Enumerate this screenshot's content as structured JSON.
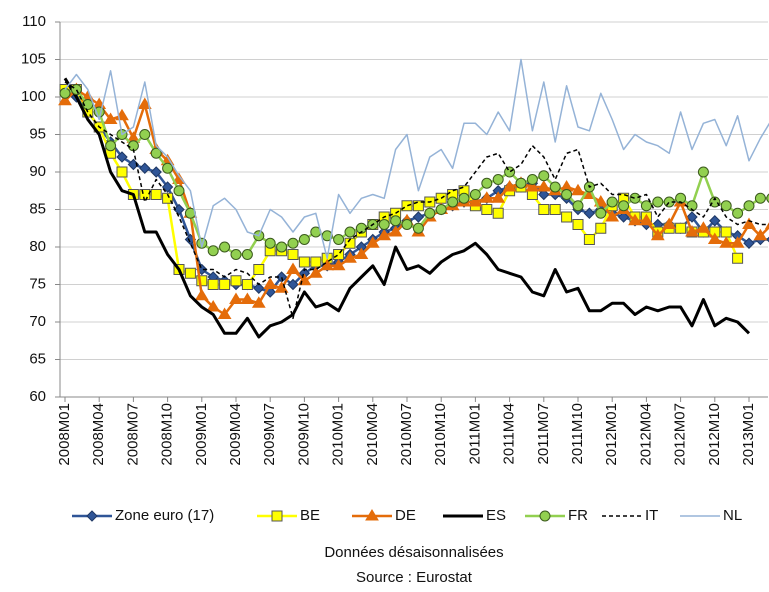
{
  "chart_data": {
    "type": "line",
    "categories": [
      "2008M01",
      null,
      null,
      "2008M04",
      null,
      null,
      "2008M07",
      null,
      null,
      "2008M10",
      null,
      null,
      "2009M01",
      null,
      null,
      "2009M04",
      null,
      null,
      "2009M07",
      null,
      null,
      "2009M10",
      null,
      null,
      "2010M01",
      null,
      null,
      "2010M04",
      null,
      null,
      "2010M07",
      null,
      null,
      "2010M10",
      null,
      null,
      "2011M01",
      null,
      null,
      "2011M04",
      null,
      null,
      "2011M07",
      null,
      null,
      "2011M10",
      null,
      null,
      "2012M01",
      null,
      null,
      "2012M04",
      null,
      null,
      "2012M07",
      null,
      null,
      "2012M10",
      null,
      null,
      "2013M01",
      null,
      null
    ],
    "ylim": [
      60,
      110
    ],
    "yticks": [
      60,
      65,
      70,
      75,
      80,
      85,
      90,
      95,
      100,
      105,
      110
    ],
    "grid": true,
    "series": [
      {
        "name": "Zone euro (17)",
        "color": "#2f5597",
        "marker": "diamond",
        "line_width": 2.5,
        "values": [
          101,
          100,
          98,
          96,
          94,
          92,
          91,
          90.5,
          90,
          88,
          85,
          81,
          77,
          76,
          75.5,
          75,
          75,
          74.5,
          74,
          76,
          75,
          76.5,
          77.5,
          77.5,
          78,
          79,
          80,
          81,
          82,
          82.5,
          83.5,
          84,
          84.5,
          85,
          85.5,
          86,
          86,
          86.5,
          87.5,
          88,
          88,
          88.5,
          87,
          87,
          86.5,
          85,
          84.5,
          85,
          84.5,
          84,
          83.5,
          83,
          83,
          83,
          82.5,
          84,
          82,
          83.5,
          82,
          81.5,
          80.5,
          81,
          81
        ]
      },
      {
        "name": "BE",
        "color": "#ffff00",
        "marker": "square",
        "line_width": 2.5,
        "values": [
          101,
          101,
          98,
          96,
          92.5,
          90,
          87,
          87,
          87,
          86.5,
          77,
          76.5,
          75.5,
          75,
          75,
          75.5,
          75,
          77,
          79.5,
          79.5,
          79,
          78,
          78,
          78.5,
          79,
          80.5,
          82,
          83,
          84,
          84.5,
          85.5,
          85.5,
          86,
          86.5,
          87,
          87.5,
          85.5,
          85,
          84.5,
          87.5,
          88,
          87,
          85,
          85,
          84,
          83,
          81,
          82.5,
          85.5,
          86.5,
          84,
          84,
          82,
          82.5,
          82.5,
          82,
          82,
          82,
          82,
          78.5,
          null,
          null,
          null
        ]
      },
      {
        "name": "DE",
        "color": "#e46c0a",
        "marker": "triangle",
        "line_width": 2.5,
        "values": [
          99.5,
          101,
          100,
          99,
          97,
          97.5,
          94.5,
          99,
          93,
          91.5,
          89,
          84.5,
          73.5,
          72,
          71,
          73,
          73,
          72.5,
          75,
          74.5,
          77,
          75.5,
          76.5,
          77.5,
          77.5,
          78.5,
          79,
          80.5,
          81.5,
          82,
          83.5,
          82,
          84,
          85,
          85.5,
          86,
          86,
          86.5,
          86.5,
          88,
          88.5,
          88,
          88,
          87.5,
          88,
          87.5,
          87,
          86,
          84,
          85,
          83.5,
          83.5,
          81.5,
          83,
          86,
          82,
          82.5,
          81,
          80.5,
          80.5,
          83,
          81.5,
          83
        ]
      },
      {
        "name": "ES",
        "color": "#000000",
        "marker": "none",
        "line_width": 3,
        "values": [
          102.5,
          100,
          97,
          95,
          90,
          87.5,
          87,
          82,
          82,
          79,
          77,
          73.5,
          72,
          71,
          68.5,
          68.5,
          70.5,
          68,
          69.5,
          70,
          71,
          74,
          72,
          72.5,
          71.5,
          74.5,
          76,
          77.5,
          75,
          80,
          77,
          77.5,
          76.5,
          78,
          79,
          79.5,
          80.5,
          79,
          77,
          76.5,
          76,
          74,
          73.5,
          77,
          74,
          74.5,
          71.5,
          71.5,
          72.5,
          72.5,
          71,
          72,
          71.5,
          72,
          72,
          69.5,
          73,
          69.5,
          70.5,
          70,
          68.5,
          null,
          null
        ]
      },
      {
        "name": "FR",
        "color": "#92d050",
        "marker": "circle",
        "line_width": 2.5,
        "values": [
          100.5,
          101,
          99,
          98,
          93.5,
          95,
          93.5,
          95,
          92.5,
          90.5,
          87.5,
          84.5,
          80.5,
          79.5,
          80,
          79,
          79,
          81.5,
          80.5,
          80,
          80.5,
          81,
          82,
          81.5,
          81,
          82,
          82.5,
          83,
          83,
          83.5,
          83,
          82.5,
          84.5,
          85,
          86,
          86.5,
          87,
          88.5,
          89,
          90,
          88.5,
          89,
          89.5,
          88,
          87,
          85.5,
          88,
          84.5,
          86,
          85.5,
          86.5,
          85.5,
          86,
          86,
          86.5,
          85.5,
          90,
          86,
          85.5,
          84.5,
          85.5,
          86.5,
          86.5
        ]
      },
      {
        "name": "IT",
        "color": "#000000",
        "marker": "none",
        "dashed": true,
        "line_width": 1.5,
        "values": [
          102,
          101,
          98,
          96,
          95,
          94,
          93,
          86,
          89,
          87,
          84,
          80.5,
          77,
          77,
          76,
          77,
          76.5,
          75,
          76,
          76,
          70.5,
          77,
          77,
          78,
          79,
          81,
          82,
          83,
          84,
          84.5,
          85.5,
          86,
          86,
          86.5,
          87.5,
          88,
          90,
          92,
          92.5,
          90,
          91,
          93.5,
          92,
          89,
          92.5,
          93,
          88,
          88.5,
          87,
          87,
          86.5,
          87,
          84,
          86,
          86,
          85,
          84,
          86.5,
          84,
          83,
          83.5,
          83,
          83
        ]
      },
      {
        "name": "NL",
        "color": "#95b3d7",
        "marker": "none",
        "line_width": 1.5,
        "values": [
          101,
          103,
          101,
          97,
          103.5,
          95,
          96,
          102,
          93.5,
          92,
          89.5,
          87.5,
          80,
          85.5,
          86.5,
          85,
          82,
          81.5,
          85,
          84,
          82,
          84,
          84.5,
          78.5,
          87,
          84.5,
          86.5,
          87,
          86.5,
          93,
          95,
          87.5,
          92,
          93,
          90.5,
          96.5,
          96.5,
          95,
          98,
          95.5,
          105,
          95.5,
          102,
          94,
          101.5,
          96,
          95.5,
          100.5,
          97,
          93,
          95,
          94,
          93.5,
          92.5,
          98,
          93,
          96.5,
          97,
          93.5,
          97.5,
          91.5,
          94.5,
          97
        ]
      }
    ],
    "notes": [
      "Données désaisonnalisées",
      "Source : Eurostat"
    ]
  }
}
